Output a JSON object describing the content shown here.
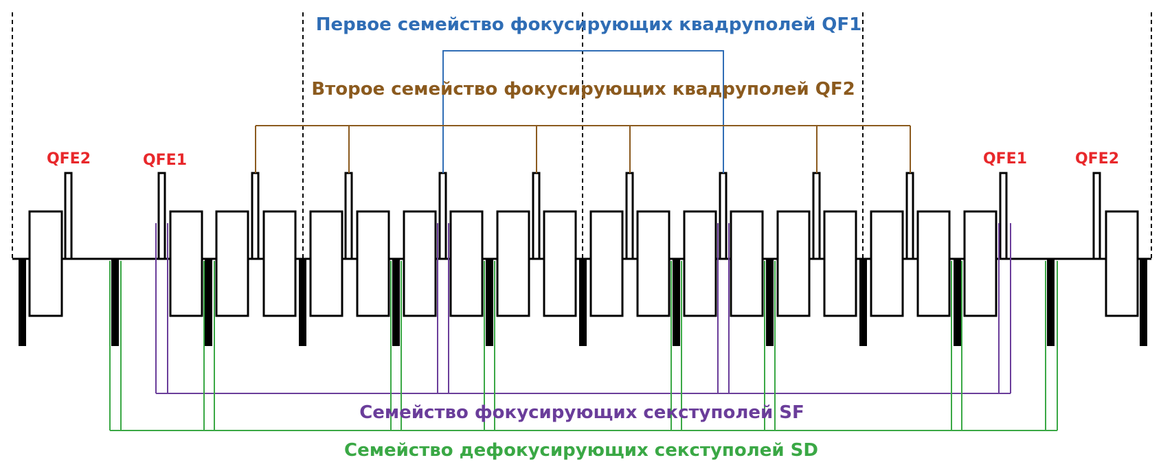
{
  "labels": {
    "qf1_family": "Первое семейство фокусирующих квадруполей QF1",
    "qf2_family": "Второе семейство фокусирующих квадруполей QF2",
    "sf_family": "Семейство фокусирующих секступолей SF",
    "sd_family": "Семейство дефокусирующих секступолей SD",
    "qfe2_left": "QFE2",
    "qfe1_left": "QFE1",
    "qfe1_right": "QFE1",
    "qfe2_right": "QFE2"
  },
  "colors": {
    "qf1": "#2f6db5",
    "qf2": "#8b5a1e",
    "sf": "#6a3d9a",
    "sd": "#3aa845",
    "qfe": "#e8282b",
    "element": "#000000",
    "element_fill": "#ffffff",
    "period_boundary": "#000000"
  }
}
